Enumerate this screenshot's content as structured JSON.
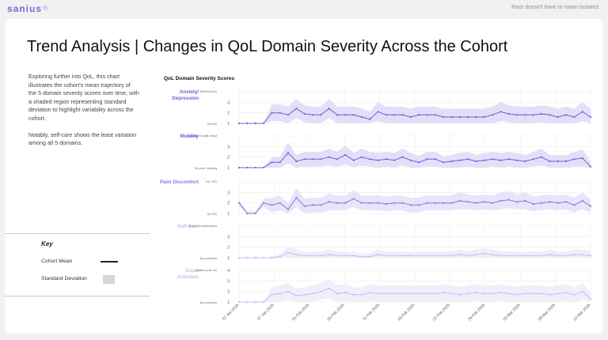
{
  "header": {
    "logo": "sanius",
    "tagline": "Rare doesn't have to mean isolated"
  },
  "page": {
    "title": "Trend Analysis | Changes in QoL Domain Severity Across the Cohort",
    "description": [
      "Exploring further into QoL, this chart illustrates the cohort's mean trajectory of the 5 domain severity scores over time, with a shaded region representing standard deviation to highlight variability across the cohort.",
      "Notably, self-care shows the least variation among all 5 domains."
    ]
  },
  "key": {
    "title": "Key",
    "mean_label": "Cohort Mean",
    "sd_label": "Standard Deviation"
  },
  "colors": {
    "accent": "#7a67d8",
    "domains": [
      "#6f5ed8",
      "#6f5ed8",
      "#8878de",
      "#c5bdf0",
      "#c5bdf0"
    ],
    "bands": [
      "#e4dff8",
      "#e4dff8",
      "#e8e4f9",
      "#f1eefb",
      "#f1eefb"
    ]
  },
  "chart_data": {
    "type": "line",
    "title": "QoL Domain Severity Scores",
    "x_ticks": [
      "22 Jan 2025",
      "27 Jan 2025",
      "01 Feb 2025",
      "06 Feb 2025",
      "11 Feb 2025",
      "16 Feb 2025",
      "21 Feb 2025",
      "26 Feb 2025",
      "03 Mar 2025",
      "08 Mar 2025",
      "13 Mar 2025"
    ],
    "ylim": [
      1,
      4
    ],
    "y_ticks": [
      1,
      2,
      3,
      4
    ],
    "domains": [
      {
        "name": "Anxiety/ Depression",
        "top_label": "Extreme A/D",
        "bottom_label": "No A/D",
        "mean": [
          1,
          1,
          1,
          1,
          2,
          2,
          1.8,
          2.4,
          1.9,
          1.8,
          1.8,
          2.4,
          1.8,
          1.8,
          1.8,
          1.6,
          1.4,
          2.1,
          1.8,
          1.8,
          1.8,
          1.6,
          1.8,
          1.8,
          1.8,
          1.6,
          1.6,
          1.6,
          1.6,
          1.6,
          1.6,
          1.8,
          2.1,
          1.9,
          1.8,
          1.8,
          1.8,
          1.9,
          1.8,
          1.6,
          1.8,
          1.6,
          2.1,
          1.6
        ],
        "sd": [
          0,
          0,
          0,
          0,
          0.8,
          0.8,
          0.8,
          0.9,
          0.8,
          0.8,
          0.8,
          0.9,
          0.8,
          0.8,
          0.8,
          0.8,
          0.7,
          0.9,
          0.8,
          0.8,
          0.8,
          0.8,
          0.8,
          0.8,
          0.8,
          0.8,
          0.8,
          0.8,
          0.8,
          0.8,
          0.8,
          0.8,
          0.9,
          0.8,
          0.8,
          0.8,
          0.8,
          0.8,
          0.8,
          0.8,
          0.8,
          0.8,
          0.9,
          0.8
        ]
      },
      {
        "name": "Mobility",
        "top_label": "Unable to walk about",
        "bottom_label": "No prob. walking",
        "mean": [
          1,
          1,
          1,
          1,
          1.5,
          1.5,
          2.4,
          1.6,
          1.8,
          1.8,
          1.8,
          2,
          1.8,
          2.2,
          1.7,
          2,
          1.8,
          1.7,
          1.8,
          1.7,
          2,
          1.7,
          1.5,
          1.8,
          1.8,
          1.5,
          1.6,
          1.7,
          1.8,
          1.6,
          1.7,
          1.8,
          1.7,
          1.8,
          1.7,
          1.6,
          1.8,
          2,
          1.6,
          1.6,
          1.6,
          1.8,
          1.9,
          1.1
        ],
        "sd": [
          0,
          0,
          0,
          0,
          0.5,
          0.5,
          1,
          0.6,
          0.7,
          0.7,
          0.7,
          0.8,
          0.7,
          0.9,
          0.7,
          0.8,
          0.7,
          0.7,
          0.7,
          0.7,
          0.8,
          0.7,
          0.6,
          0.7,
          0.7,
          0.6,
          0.6,
          0.7,
          0.7,
          0.6,
          0.7,
          0.7,
          0.7,
          0.7,
          0.7,
          0.6,
          0.7,
          0.8,
          0.6,
          0.6,
          0.6,
          0.7,
          0.8,
          0.5
        ]
      },
      {
        "name": "Pain/ Discomfort",
        "top_label": "Ext. P/D",
        "bottom_label": "No P/D",
        "mean": [
          2,
          1,
          1,
          2,
          1.8,
          2,
          1.4,
          2.5,
          1.7,
          1.8,
          1.8,
          2.1,
          2,
          2,
          2.4,
          2,
          2,
          2,
          1.9,
          2,
          2,
          1.8,
          1.8,
          2,
          2,
          2,
          2,
          2.2,
          2.1,
          2,
          2.1,
          2,
          2.2,
          2.3,
          2.1,
          2.2,
          1.9,
          2,
          2.1,
          2,
          2.1,
          1.8,
          2.2,
          1.7
        ],
        "sd": [
          0.3,
          0.2,
          0.2,
          0.4,
          0.7,
          0.7,
          0.6,
          0.9,
          0.7,
          0.7,
          0.7,
          0.8,
          0.7,
          0.7,
          0.8,
          0.7,
          0.7,
          0.7,
          0.7,
          0.7,
          0.7,
          0.7,
          0.7,
          0.7,
          0.7,
          0.7,
          0.7,
          0.8,
          0.7,
          0.7,
          0.7,
          0.7,
          0.8,
          0.8,
          0.7,
          0.8,
          0.7,
          0.7,
          0.7,
          0.7,
          0.7,
          0.7,
          0.8,
          0.6
        ]
      },
      {
        "name": "Self-Care",
        "top_label": "Unable to wash/dress",
        "bottom_label": "No problems",
        "mean": [
          1,
          1,
          1,
          1,
          1,
          1.1,
          1.5,
          1.3,
          1.2,
          1.2,
          1.2,
          1.3,
          1.2,
          1.2,
          1.2,
          1.1,
          1.1,
          1.3,
          1.2,
          1.2,
          1.2,
          1.2,
          1.2,
          1.2,
          1.2,
          1.2,
          1.2,
          1.3,
          1.2,
          1.3,
          1.4,
          1.3,
          1.2,
          1.2,
          1.2,
          1.2,
          1.2,
          1.2,
          1.3,
          1.2,
          1.2,
          1.3,
          1.3,
          1.2
        ],
        "sd": [
          0,
          0,
          0,
          0,
          0.1,
          0.3,
          0.6,
          0.5,
          0.4,
          0.4,
          0.4,
          0.5,
          0.4,
          0.4,
          0.4,
          0.3,
          0.3,
          0.5,
          0.4,
          0.4,
          0.4,
          0.4,
          0.4,
          0.4,
          0.4,
          0.4,
          0.4,
          0.5,
          0.4,
          0.5,
          0.5,
          0.5,
          0.4,
          0.4,
          0.4,
          0.4,
          0.4,
          0.4,
          0.5,
          0.4,
          0.4,
          0.5,
          0.5,
          0.4
        ]
      },
      {
        "name": "Usual Activities",
        "top_label": "Unable to do UA",
        "bottom_label": "No problems",
        "mean": [
          1,
          1,
          1,
          1,
          1.7,
          1.8,
          2,
          1.6,
          1.7,
          1.8,
          2,
          2.3,
          1.8,
          1.9,
          1.7,
          1.7,
          1.9,
          1.8,
          1.8,
          1.8,
          1.8,
          1.8,
          1.8,
          1.8,
          1.8,
          1.9,
          1.8,
          1.7,
          1.8,
          1.9,
          1.8,
          1.8,
          1.9,
          1.8,
          1.7,
          1.8,
          1.8,
          1.8,
          1.7,
          1.8,
          1.9,
          1.7,
          2,
          1.3
        ],
        "sd": [
          0,
          0,
          0,
          0,
          0.7,
          0.8,
          0.8,
          0.7,
          0.7,
          0.8,
          0.8,
          0.9,
          0.8,
          0.8,
          0.7,
          0.7,
          0.8,
          0.8,
          0.8,
          0.8,
          0.8,
          0.8,
          0.8,
          0.8,
          0.8,
          0.8,
          0.8,
          0.7,
          0.8,
          0.8,
          0.8,
          0.8,
          0.8,
          0.8,
          0.7,
          0.8,
          0.8,
          0.8,
          0.7,
          0.8,
          0.8,
          0.7,
          0.8,
          0.6
        ]
      }
    ]
  }
}
